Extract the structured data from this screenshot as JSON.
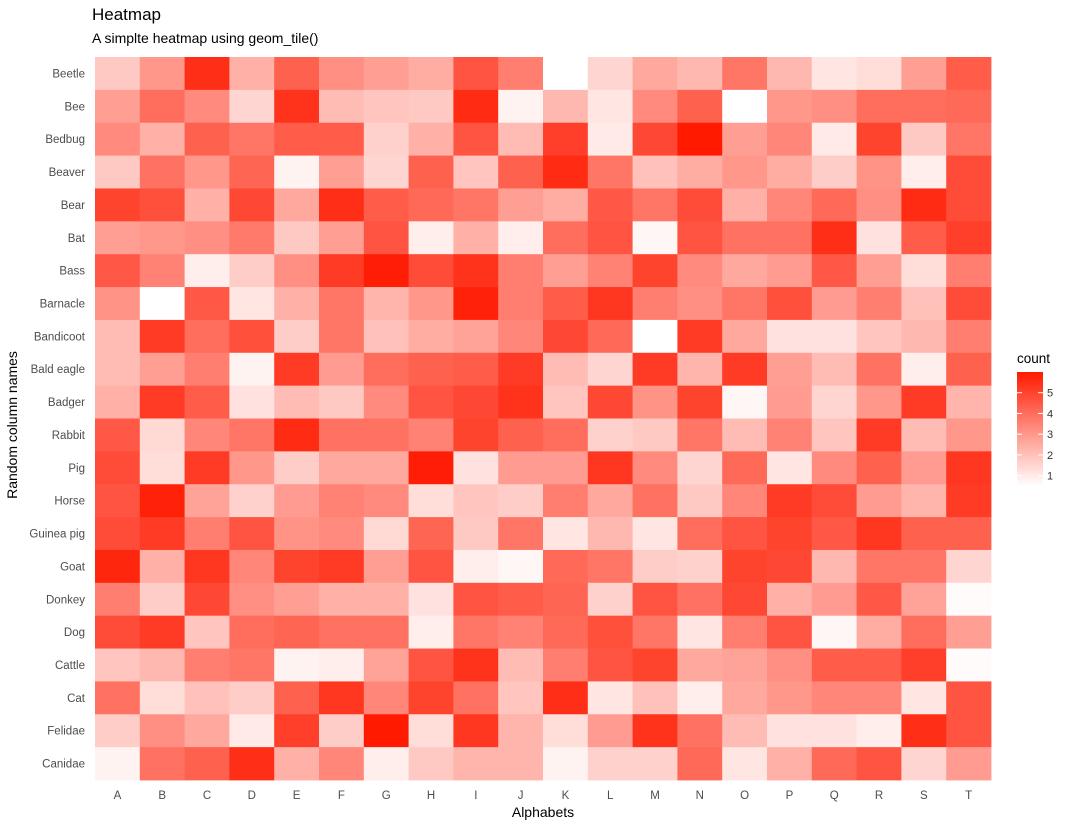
{
  "chart_data": {
    "type": "heatmap",
    "title": "Heatmap",
    "subtitle": "A simplte heatmap using geom_tile()",
    "xlabel": "Alphabets",
    "ylabel": "Random column names",
    "x_categories": [
      "A",
      "B",
      "C",
      "D",
      "E",
      "F",
      "G",
      "H",
      "I",
      "J",
      "K",
      "L",
      "M",
      "N",
      "O",
      "P",
      "Q",
      "R",
      "S",
      "T"
    ],
    "y_categories": [
      "Beetle",
      "Bee",
      "Bedbug",
      "Beaver",
      "Bear",
      "Bat",
      "Bass",
      "Barnacle",
      "Bandicoot",
      "Bald eagle",
      "Badger",
      "Rabbit",
      "Pig",
      "Horse",
      "Guinea pig",
      "Goat",
      "Donkey",
      "Dog",
      "Cattle",
      "Cat",
      "Felidae",
      "Canidae"
    ],
    "values": [
      [
        1.8,
        3.0,
        5.5,
        2.4,
        4.3,
        3.2,
        2.8,
        2.5,
        4.6,
        3.6,
        0.5,
        1.5,
        2.6,
        2.2,
        3.8,
        2.2,
        1.1,
        1.3,
        2.8,
        4.4
      ],
      [
        2.8,
        4.0,
        3.3,
        1.5,
        5.4,
        2.1,
        1.9,
        1.8,
        5.6,
        0.8,
        2.2,
        1.1,
        3.3,
        4.3,
        0.5,
        3.0,
        3.2,
        4.0,
        4.0,
        4.1
      ],
      [
        3.3,
        2.4,
        4.3,
        3.8,
        4.4,
        4.4,
        1.6,
        2.4,
        4.6,
        2.1,
        5.1,
        1.0,
        4.9,
        6.0,
        2.8,
        3.4,
        1.0,
        5.0,
        1.8,
        3.8
      ],
      [
        1.8,
        3.9,
        3.0,
        4.2,
        0.8,
        2.8,
        1.5,
        4.3,
        1.9,
        4.3,
        5.6,
        3.8,
        2.0,
        2.5,
        3.0,
        2.5,
        1.7,
        3.1,
        0.9,
        4.8
      ],
      [
        5.0,
        4.7,
        2.4,
        4.9,
        2.6,
        5.5,
        4.4,
        4.1,
        3.8,
        2.8,
        2.5,
        4.5,
        3.8,
        4.8,
        2.4,
        3.4,
        4.1,
        3.2,
        5.6,
        4.8
      ],
      [
        2.8,
        3.0,
        3.2,
        3.7,
        1.8,
        2.8,
        4.6,
        0.9,
        2.4,
        0.9,
        4.0,
        4.6,
        0.7,
        4.6,
        3.9,
        3.9,
        5.5,
        1.2,
        4.4,
        5.1
      ],
      [
        4.5,
        3.5,
        0.9,
        1.7,
        3.2,
        5.2,
        5.9,
        4.8,
        5.4,
        3.6,
        2.8,
        3.5,
        5.0,
        3.3,
        2.6,
        2.9,
        4.5,
        2.8,
        1.3,
        3.6
      ],
      [
        3.1,
        0.5,
        4.5,
        1.1,
        2.4,
        3.8,
        2.3,
        3.0,
        5.8,
        3.6,
        4.4,
        5.3,
        3.6,
        3.2,
        3.8,
        4.7,
        2.9,
        3.6,
        2.0,
        4.8
      ],
      [
        2.1,
        5.2,
        4.0,
        4.7,
        1.7,
        3.8,
        2.0,
        2.5,
        2.7,
        3.4,
        4.9,
        4.1,
        0.5,
        5.2,
        2.6,
        1.2,
        1.2,
        1.9,
        2.2,
        3.6
      ],
      [
        2.1,
        2.8,
        3.6,
        0.8,
        5.2,
        2.9,
        4.0,
        4.3,
        4.4,
        5.2,
        2.1,
        1.5,
        5.2,
        2.3,
        5.2,
        2.8,
        2.1,
        3.9,
        0.9,
        4.3
      ],
      [
        2.4,
        5.2,
        4.4,
        1.2,
        2.1,
        1.8,
        3.3,
        4.6,
        4.9,
        5.4,
        1.9,
        4.9,
        3.1,
        5.0,
        0.7,
        2.9,
        1.5,
        3.0,
        5.2,
        2.3
      ],
      [
        4.5,
        1.4,
        3.4,
        3.8,
        5.6,
        3.9,
        3.9,
        3.5,
        5.0,
        4.3,
        4.0,
        1.6,
        1.8,
        3.8,
        2.1,
        3.5,
        1.9,
        5.2,
        2.1,
        3.0
      ],
      [
        4.8,
        1.3,
        5.2,
        3.0,
        1.7,
        2.6,
        2.6,
        5.9,
        1.2,
        2.9,
        2.9,
        5.3,
        3.3,
        1.5,
        4.1,
        1.1,
        3.3,
        4.3,
        2.9,
        5.3
      ],
      [
        4.6,
        5.8,
        2.7,
        1.6,
        2.9,
        3.5,
        3.3,
        1.3,
        1.9,
        1.7,
        3.6,
        2.6,
        3.9,
        1.8,
        3.4,
        5.2,
        4.8,
        2.9,
        2.3,
        5.2
      ],
      [
        4.8,
        5.2,
        3.6,
        4.6,
        3.1,
        3.3,
        1.4,
        4.2,
        1.8,
        3.8,
        1.1,
        2.2,
        1.1,
        4.0,
        4.6,
        5.0,
        4.5,
        5.3,
        4.3,
        4.3
      ],
      [
        5.7,
        2.4,
        5.3,
        3.4,
        5.0,
        5.2,
        2.8,
        4.6,
        0.9,
        0.7,
        4.1,
        3.8,
        1.7,
        1.6,
        5.0,
        4.9,
        2.2,
        3.8,
        3.8,
        1.5
      ],
      [
        3.6,
        1.7,
        4.9,
        3.2,
        2.8,
        2.4,
        2.4,
        1.2,
        4.6,
        4.4,
        4.2,
        1.6,
        4.6,
        3.9,
        4.9,
        2.4,
        2.9,
        4.5,
        2.7,
        0.6
      ],
      [
        4.8,
        5.2,
        1.9,
        4.0,
        4.2,
        3.9,
        3.9,
        0.9,
        3.8,
        3.5,
        4.1,
        4.7,
        3.8,
        1.1,
        3.6,
        4.6,
        0.7,
        2.5,
        4.0,
        2.8
      ],
      [
        1.9,
        2.2,
        3.6,
        3.8,
        0.8,
        0.9,
        2.7,
        4.6,
        5.4,
        2.1,
        3.6,
        4.6,
        5.0,
        2.6,
        2.7,
        3.2,
        4.4,
        4.4,
        5.1,
        0.6
      ],
      [
        3.9,
        1.3,
        2.0,
        1.7,
        4.3,
        5.3,
        3.4,
        5.0,
        3.9,
        1.9,
        5.5,
        1.1,
        2.0,
        0.9,
        2.6,
        3.0,
        3.4,
        3.4,
        1.1,
        4.6
      ],
      [
        1.7,
        3.2,
        2.6,
        1.0,
        5.1,
        1.7,
        6.0,
        1.3,
        5.3,
        2.3,
        1.3,
        2.9,
        5.4,
        3.9,
        2.1,
        1.2,
        1.2,
        0.9,
        5.5,
        4.6
      ],
      [
        0.8,
        3.9,
        4.3,
        5.5,
        2.4,
        3.4,
        0.9,
        1.8,
        2.3,
        2.3,
        0.8,
        1.6,
        1.6,
        4.1,
        1.1,
        2.4,
        4.1,
        4.6,
        1.5,
        2.9
      ]
    ],
    "color_scale": {
      "low": "#ffffff",
      "high": "#ff1a00",
      "min": 0.5,
      "max": 6.0
    },
    "legend": {
      "title": "count",
      "ticks": [
        1,
        2,
        3,
        4,
        5
      ],
      "position": "right"
    },
    "grid": true
  }
}
